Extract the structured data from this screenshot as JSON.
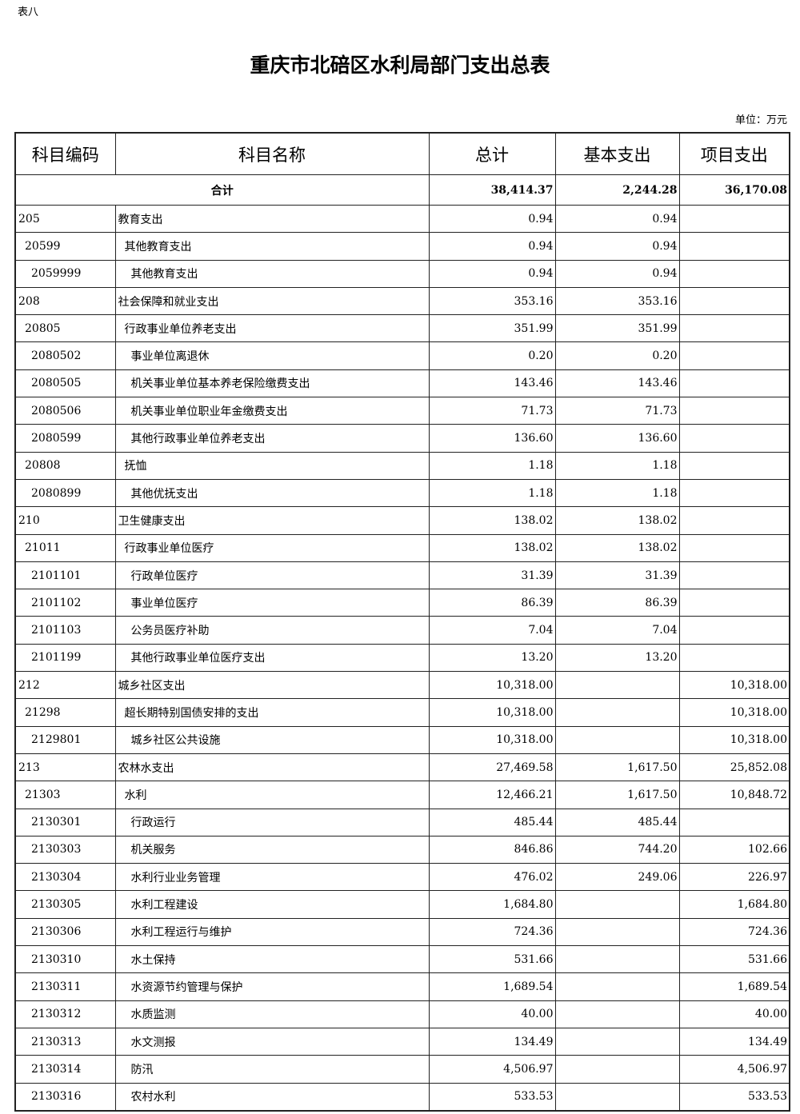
{
  "doc_label": "表八",
  "title": "重庆市北碚区水利局部门支出总表",
  "unit": "单位：万元",
  "headers": [
    "科目编码",
    "科目名称",
    "总计",
    "基本支出",
    "项目支出"
  ],
  "total": {
    "label": "合计",
    "total": "38,414.37",
    "basic": "2,244.28",
    "project": "36,170.08"
  },
  "rows": [
    {
      "code": "205",
      "name": "教育支出",
      "level": 1,
      "total": "0.94",
      "basic": "0.94",
      "project": ""
    },
    {
      "code": "20599",
      "name": "其他教育支出",
      "level": 2,
      "total": "0.94",
      "basic": "0.94",
      "project": ""
    },
    {
      "code": "2059999",
      "name": "其他教育支出",
      "level": 3,
      "total": "0.94",
      "basic": "0.94",
      "project": ""
    },
    {
      "code": "208",
      "name": "社会保障和就业支出",
      "level": 1,
      "total": "353.16",
      "basic": "353.16",
      "project": ""
    },
    {
      "code": "20805",
      "name": "行政事业单位养老支出",
      "level": 2,
      "total": "351.99",
      "basic": "351.99",
      "project": ""
    },
    {
      "code": "2080502",
      "name": "事业单位离退休",
      "level": 3,
      "total": "0.20",
      "basic": "0.20",
      "project": ""
    },
    {
      "code": "2080505",
      "name": "机关事业单位基本养老保险缴费支出",
      "level": 3,
      "total": "143.46",
      "basic": "143.46",
      "project": ""
    },
    {
      "code": "2080506",
      "name": "机关事业单位职业年金缴费支出",
      "level": 3,
      "total": "71.73",
      "basic": "71.73",
      "project": ""
    },
    {
      "code": "2080599",
      "name": "其他行政事业单位养老支出",
      "level": 3,
      "total": "136.60",
      "basic": "136.60",
      "project": ""
    },
    {
      "code": "20808",
      "name": "抚恤",
      "level": 2,
      "total": "1.18",
      "basic": "1.18",
      "project": ""
    },
    {
      "code": "2080899",
      "name": "其他优抚支出",
      "level": 3,
      "total": "1.18",
      "basic": "1.18",
      "project": ""
    },
    {
      "code": "210",
      "name": "卫生健康支出",
      "level": 1,
      "total": "138.02",
      "basic": "138.02",
      "project": ""
    },
    {
      "code": "21011",
      "name": "行政事业单位医疗",
      "level": 2,
      "total": "138.02",
      "basic": "138.02",
      "project": ""
    },
    {
      "code": "2101101",
      "name": "行政单位医疗",
      "level": 3,
      "total": "31.39",
      "basic": "31.39",
      "project": ""
    },
    {
      "code": "2101102",
      "name": "事业单位医疗",
      "level": 3,
      "total": "86.39",
      "basic": "86.39",
      "project": ""
    },
    {
      "code": "2101103",
      "name": "公务员医疗补助",
      "level": 3,
      "total": "7.04",
      "basic": "7.04",
      "project": ""
    },
    {
      "code": "2101199",
      "name": "其他行政事业单位医疗支出",
      "level": 3,
      "total": "13.20",
      "basic": "13.20",
      "project": ""
    },
    {
      "code": "212",
      "name": "城乡社区支出",
      "level": 1,
      "total": "10,318.00",
      "basic": "",
      "project": "10,318.00"
    },
    {
      "code": "21298",
      "name": "超长期特别国债安排的支出",
      "level": 2,
      "total": "10,318.00",
      "basic": "",
      "project": "10,318.00"
    },
    {
      "code": "2129801",
      "name": "城乡社区公共设施",
      "level": 3,
      "total": "10,318.00",
      "basic": "",
      "project": "10,318.00"
    },
    {
      "code": "213",
      "name": "农林水支出",
      "level": 1,
      "total": "27,469.58",
      "basic": "1,617.50",
      "project": "25,852.08"
    },
    {
      "code": "21303",
      "name": "水利",
      "level": 2,
      "total": "12,466.21",
      "basic": "1,617.50",
      "project": "10,848.72"
    },
    {
      "code": "2130301",
      "name": "行政运行",
      "level": 3,
      "total": "485.44",
      "basic": "485.44",
      "project": ""
    },
    {
      "code": "2130303",
      "name": "机关服务",
      "level": 3,
      "total": "846.86",
      "basic": "744.20",
      "project": "102.66"
    },
    {
      "code": "2130304",
      "name": "水利行业业务管理",
      "level": 3,
      "total": "476.02",
      "basic": "249.06",
      "project": "226.97"
    },
    {
      "code": "2130305",
      "name": "水利工程建设",
      "level": 3,
      "total": "1,684.80",
      "basic": "",
      "project": "1,684.80"
    },
    {
      "code": "2130306",
      "name": "水利工程运行与维护",
      "level": 3,
      "total": "724.36",
      "basic": "",
      "project": "724.36"
    },
    {
      "code": "2130310",
      "name": "水土保持",
      "level": 3,
      "total": "531.66",
      "basic": "",
      "project": "531.66"
    },
    {
      "code": "2130311",
      "name": "水资源节约管理与保护",
      "level": 3,
      "total": "1,689.54",
      "basic": "",
      "project": "1,689.54"
    },
    {
      "code": "2130312",
      "name": "水质监测",
      "level": 3,
      "total": "40.00",
      "basic": "",
      "project": "40.00"
    },
    {
      "code": "2130313",
      "name": "水文测报",
      "level": 3,
      "total": "134.49",
      "basic": "",
      "project": "134.49"
    },
    {
      "code": "2130314",
      "name": "防汛",
      "level": 3,
      "total": "4,506.97",
      "basic": "",
      "project": "4,506.97"
    },
    {
      "code": "2130316",
      "name": "农村水利",
      "level": 3,
      "total": "533.53",
      "basic": "",
      "project": "533.53"
    }
  ]
}
